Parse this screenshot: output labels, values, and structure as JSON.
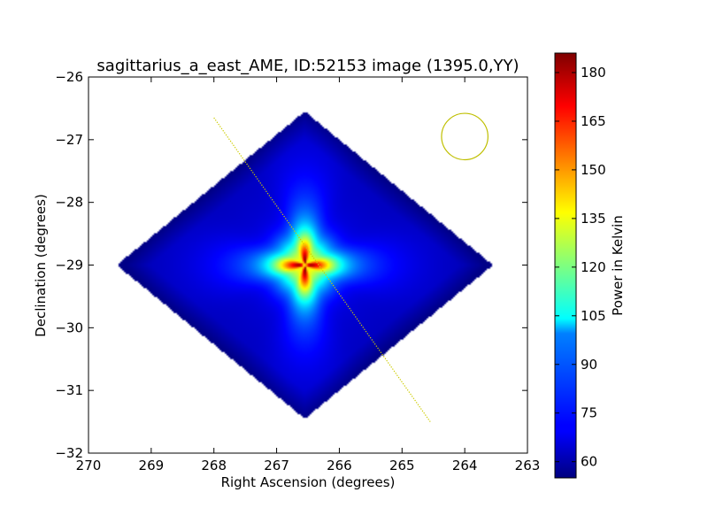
{
  "chart_data": {
    "type": "heatmap",
    "title": "sagittarius_a_east_AME, ID:52153 image (1395.0,YY)",
    "xlabel": "Right Ascension (degrees)",
    "ylabel": "Declination (degrees)",
    "xlim": [
      270,
      263
    ],
    "ylim": [
      -32,
      -26
    ],
    "xticks": [
      "270",
      "269",
      "268",
      "267",
      "266",
      "265",
      "264",
      "263"
    ],
    "yticks": [
      "−26",
      "−27",
      "−28",
      "−29",
      "−30",
      "−31",
      "−32"
    ],
    "colorbar": {
      "label": "Power in Kelvin",
      "range": [
        55,
        186
      ],
      "ticks": [
        "60",
        "75",
        "90",
        "105",
        "120",
        "135",
        "150",
        "165",
        "180"
      ],
      "colormap": "jet"
    },
    "map_footprint": {
      "center": [
        266.55,
        -29.0
      ],
      "vertices": [
        [
          266.55,
          -26.55
        ],
        [
          263.55,
          -29.0
        ],
        [
          266.55,
          -31.45
        ],
        [
          269.55,
          -29.0
        ]
      ],
      "outside_value": 55
    },
    "peak": {
      "ra": 266.55,
      "dec": -29.0,
      "value": 186
    },
    "galactic_plane_line": {
      "from": [
        268.0,
        -26.65
      ],
      "to": [
        264.55,
        -31.5
      ],
      "color": "#cccc00"
    },
    "beam_circle": {
      "ra": 264.0,
      "dec": -26.95,
      "radius_deg": 0.37,
      "color": "#bfbf00"
    }
  }
}
